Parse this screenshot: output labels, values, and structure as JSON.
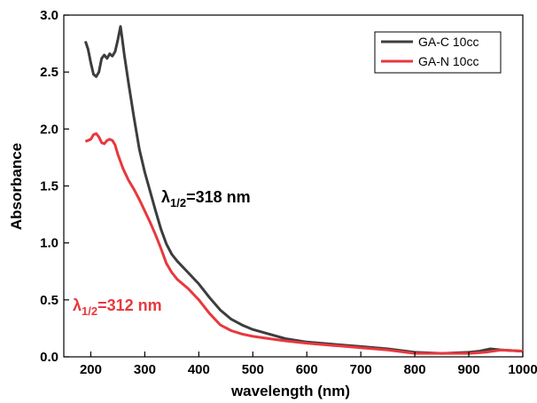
{
  "chart_data": {
    "type": "line",
    "xlabel": "wavelength (nm)",
    "ylabel": "Absorbance",
    "xlim": [
      150,
      1000
    ],
    "ylim": [
      0,
      3.0
    ],
    "x_ticks": [
      200,
      300,
      400,
      500,
      600,
      700,
      800,
      900,
      1000
    ],
    "y_ticks": [
      0.0,
      0.5,
      1.0,
      1.5,
      2.0,
      2.5,
      3.0
    ],
    "x_tick_labels": [
      "200",
      "300",
      "400",
      "500",
      "600",
      "700",
      "800",
      "900",
      "1000"
    ],
    "y_tick_labels": [
      "0.0",
      "0.5",
      "1.0",
      "1.5",
      "2.0",
      "2.5",
      "3.0"
    ],
    "legend_position": "top-right",
    "grid": false,
    "series": [
      {
        "name": "GA-C 10cc",
        "color": "#3d3d3d",
        "points": [
          [
            190,
            2.77
          ],
          [
            195,
            2.7
          ],
          [
            200,
            2.58
          ],
          [
            205,
            2.48
          ],
          [
            210,
            2.46
          ],
          [
            215,
            2.5
          ],
          [
            220,
            2.62
          ],
          [
            225,
            2.65
          ],
          [
            230,
            2.62
          ],
          [
            235,
            2.66
          ],
          [
            240,
            2.64
          ],
          [
            245,
            2.68
          ],
          [
            250,
            2.78
          ],
          [
            255,
            2.9
          ],
          [
            258,
            2.8
          ],
          [
            262,
            2.65
          ],
          [
            270,
            2.4
          ],
          [
            280,
            2.1
          ],
          [
            290,
            1.82
          ],
          [
            300,
            1.62
          ],
          [
            310,
            1.45
          ],
          [
            320,
            1.28
          ],
          [
            330,
            1.12
          ],
          [
            340,
            0.99
          ],
          [
            350,
            0.9
          ],
          [
            360,
            0.84
          ],
          [
            380,
            0.74
          ],
          [
            400,
            0.64
          ],
          [
            420,
            0.52
          ],
          [
            440,
            0.41
          ],
          [
            460,
            0.33
          ],
          [
            480,
            0.28
          ],
          [
            500,
            0.24
          ],
          [
            530,
            0.2
          ],
          [
            560,
            0.16
          ],
          [
            600,
            0.13
          ],
          [
            650,
            0.11
          ],
          [
            700,
            0.09
          ],
          [
            750,
            0.07
          ],
          [
            800,
            0.04
          ],
          [
            850,
            0.03
          ],
          [
            900,
            0.04
          ],
          [
            920,
            0.05
          ],
          [
            940,
            0.07
          ],
          [
            960,
            0.06
          ],
          [
            1000,
            0.05
          ]
        ]
      },
      {
        "name": "GA-N 10cc",
        "color": "#e8383d",
        "points": [
          [
            190,
            1.89
          ],
          [
            195,
            1.9
          ],
          [
            200,
            1.91
          ],
          [
            205,
            1.95
          ],
          [
            210,
            1.96
          ],
          [
            215,
            1.93
          ],
          [
            220,
            1.88
          ],
          [
            225,
            1.87
          ],
          [
            230,
            1.9
          ],
          [
            235,
            1.91
          ],
          [
            240,
            1.9
          ],
          [
            245,
            1.86
          ],
          [
            250,
            1.78
          ],
          [
            260,
            1.65
          ],
          [
            270,
            1.55
          ],
          [
            280,
            1.47
          ],
          [
            290,
            1.38
          ],
          [
            300,
            1.28
          ],
          [
            310,
            1.18
          ],
          [
            320,
            1.07
          ],
          [
            330,
            0.95
          ],
          [
            340,
            0.82
          ],
          [
            350,
            0.74
          ],
          [
            360,
            0.68
          ],
          [
            380,
            0.6
          ],
          [
            400,
            0.5
          ],
          [
            420,
            0.38
          ],
          [
            440,
            0.28
          ],
          [
            460,
            0.23
          ],
          [
            480,
            0.2
          ],
          [
            500,
            0.18
          ],
          [
            530,
            0.16
          ],
          [
            560,
            0.14
          ],
          [
            600,
            0.12
          ],
          [
            650,
            0.1
          ],
          [
            700,
            0.08
          ],
          [
            750,
            0.06
          ],
          [
            800,
            0.03
          ],
          [
            850,
            0.03
          ],
          [
            900,
            0.03
          ],
          [
            930,
            0.04
          ],
          [
            960,
            0.06
          ],
          [
            1000,
            0.05
          ]
        ]
      }
    ],
    "annotations": [
      {
        "id": "black",
        "prefix": "λ",
        "sub": "1/2",
        "suffix": "=318 nm",
        "color": "#000000"
      },
      {
        "id": "red",
        "prefix": "λ",
        "sub": "1/2",
        "suffix": "=312 nm",
        "color": "#e8383d"
      }
    ]
  }
}
